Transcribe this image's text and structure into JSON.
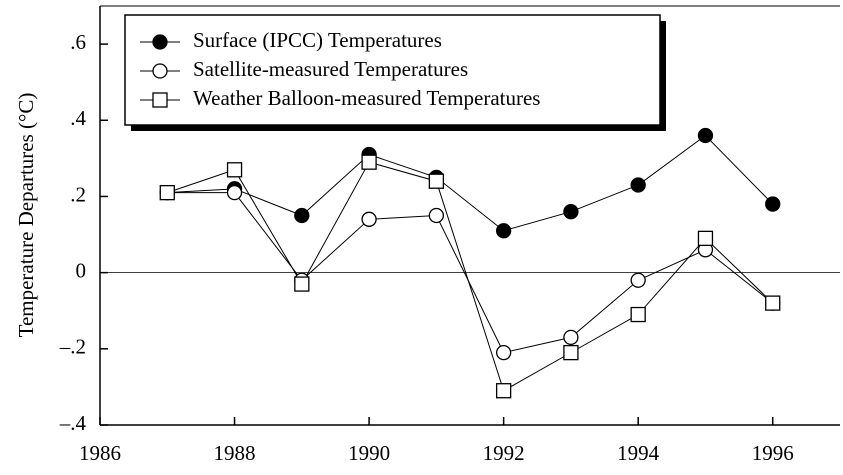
{
  "chart_data": {
    "type": "line",
    "y_label": "Temperature Departures (°C)",
    "x": [
      1987,
      1988,
      1989,
      1990,
      1991,
      1992,
      1993,
      1994,
      1995,
      1996
    ],
    "series": [
      {
        "name": "Surface (IPCC) Temperatures",
        "color": "#000000",
        "marker": "filled-circle",
        "values": [
          0.21,
          0.22,
          0.15,
          0.31,
          0.25,
          0.11,
          0.16,
          0.23,
          0.36,
          0.18
        ]
      },
      {
        "name": "Satellite-measured Temperatures",
        "color": "#000000",
        "marker": "open-circle",
        "values": [
          0.21,
          0.21,
          -0.02,
          0.14,
          0.15,
          -0.21,
          -0.17,
          -0.02,
          0.06,
          -0.08
        ]
      },
      {
        "name": "Weather Balloon-measured Temperatures",
        "color": "#000000",
        "marker": "open-square",
        "values": [
          0.21,
          0.27,
          -0.03,
          0.29,
          0.24,
          -0.31,
          -0.21,
          -0.11,
          0.09,
          -0.08
        ]
      }
    ],
    "xlim": [
      1986,
      1997
    ],
    "xticks": [
      1986,
      1988,
      1990,
      1992,
      1994,
      1996
    ],
    "ylim": [
      -0.4,
      0.7
    ],
    "yticks": [
      {
        "value": 0.6,
        "label": ".6"
      },
      {
        "value": 0.4,
        "label": ".4"
      },
      {
        "value": 0.2,
        "label": ".2"
      },
      0,
      {
        "value": -0.2,
        "label": "–.2"
      },
      {
        "value": -0.4,
        "label": "–.4"
      }
    ],
    "zero_line": true,
    "legend": "upper-left"
  }
}
